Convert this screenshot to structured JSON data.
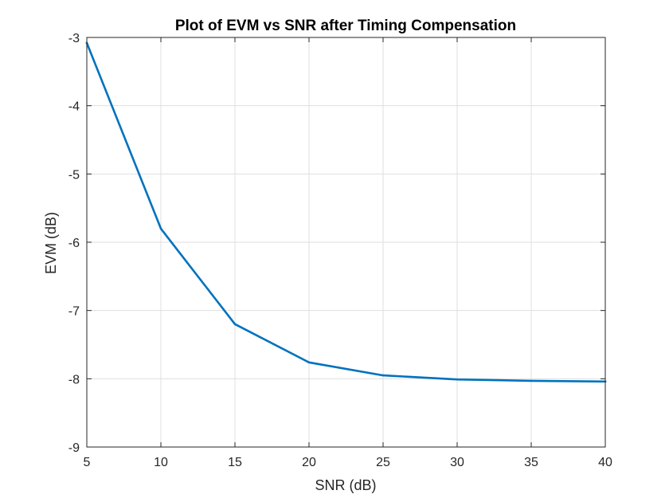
{
  "chart_data": {
    "type": "line",
    "title": "Plot of EVM vs SNR after Timing Compensation",
    "xlabel": "SNR (dB)",
    "ylabel": "EVM (dB)",
    "xlim": [
      5,
      40
    ],
    "ylim": [
      -9,
      -3
    ],
    "xticks": [
      5,
      10,
      15,
      20,
      25,
      30,
      35,
      40
    ],
    "yticks": [
      -3,
      -4,
      -5,
      -6,
      -7,
      -8,
      -9
    ],
    "grid": true,
    "series": [
      {
        "x": [
          5,
          10,
          15,
          20,
          25,
          30,
          35,
          40
        ],
        "y": [
          -3.08,
          -5.8,
          -7.2,
          -7.76,
          -7.95,
          -8.01,
          -8.03,
          -8.04
        ],
        "color": "#0072bd"
      }
    ]
  }
}
